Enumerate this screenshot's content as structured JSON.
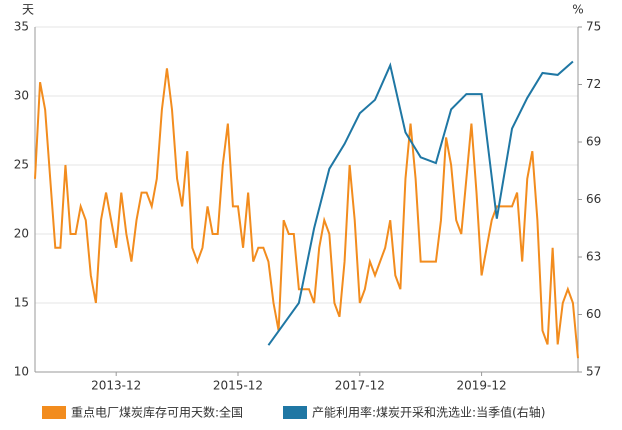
{
  "chart_data": {
    "type": "line",
    "y_label": "天",
    "y2_label": "%",
    "xlim": [
      "2012-08",
      "2021-07"
    ],
    "xticks": [
      "2013-12",
      "2015-12",
      "2017-12",
      "2019-12"
    ],
    "ylim": [
      10,
      35
    ],
    "yticks": [
      10,
      15,
      20,
      25,
      30,
      35
    ],
    "y2lim": [
      57,
      75
    ],
    "y2ticks": [
      57,
      60,
      63,
      66,
      69,
      72,
      75
    ],
    "grid": true,
    "legend": "bottom",
    "series": [
      {
        "name": "重点电厂煤炭库存可用天数:全国",
        "color": "#f28c1e",
        "x": [
          "2012-08",
          "2012-09",
          "2012-10",
          "2012-11",
          "2012-12",
          "2013-01",
          "2013-02",
          "2013-03",
          "2013-04",
          "2013-05",
          "2013-06",
          "2013-07",
          "2013-08",
          "2013-09",
          "2013-10",
          "2013-11",
          "2013-12",
          "2014-01",
          "2014-02",
          "2014-03",
          "2014-04",
          "2014-05",
          "2014-06",
          "2014-07",
          "2014-08",
          "2014-09",
          "2014-10",
          "2014-11",
          "2014-12",
          "2015-01",
          "2015-02",
          "2015-03",
          "2015-04",
          "2015-05",
          "2015-06",
          "2015-07",
          "2015-08",
          "2015-09",
          "2015-10",
          "2015-11",
          "2015-12",
          "2016-01",
          "2016-02",
          "2016-03",
          "2016-04",
          "2016-05",
          "2016-06",
          "2016-07",
          "2016-08",
          "2016-09",
          "2016-10",
          "2016-11",
          "2016-12",
          "2017-01",
          "2017-02",
          "2017-03",
          "2017-04",
          "2017-05",
          "2017-06",
          "2017-07",
          "2017-08",
          "2017-09",
          "2017-10",
          "2017-11",
          "2017-12",
          "2018-01",
          "2018-02",
          "2018-03",
          "2018-04",
          "2018-05",
          "2018-06",
          "2018-07",
          "2018-08",
          "2018-09",
          "2018-10",
          "2018-11",
          "2018-12",
          "2019-01",
          "2019-02",
          "2019-03",
          "2019-04",
          "2019-05",
          "2019-06",
          "2019-07",
          "2019-08",
          "2019-09",
          "2019-10",
          "2019-11",
          "2019-12",
          "2020-01",
          "2020-02",
          "2020-03",
          "2020-04",
          "2020-05",
          "2020-06",
          "2020-07",
          "2020-08",
          "2020-09",
          "2020-10",
          "2020-11",
          "2020-12",
          "2021-01",
          "2021-02",
          "2021-03",
          "2021-04",
          "2021-05",
          "2021-06",
          "2021-07"
        ],
        "values": [
          24,
          31,
          29,
          24,
          19,
          19,
          25,
          20,
          20,
          22,
          21,
          17,
          15,
          21,
          23,
          21,
          19,
          23,
          20,
          18,
          21,
          23,
          23,
          22,
          24,
          29,
          32,
          29,
          24,
          22,
          26,
          19,
          18,
          19,
          22,
          20,
          20,
          25,
          28,
          22,
          22,
          19,
          23,
          18,
          19,
          19,
          18,
          15,
          13,
          21,
          20,
          20,
          16,
          16,
          16,
          15,
          19,
          21,
          20,
          15,
          14,
          18,
          25,
          21,
          15,
          16,
          18,
          17,
          18,
          19,
          21,
          17,
          16,
          24,
          28,
          24,
          18,
          18,
          18,
          18,
          21,
          27,
          25,
          21,
          20,
          24,
          28,
          23,
          17,
          19,
          21,
          22,
          22,
          22,
          22,
          23,
          18,
          24,
          26,
          21,
          13,
          12,
          19,
          12,
          15,
          16,
          15,
          11
        ]
      },
      {
        "name": "产能利用率:煤炭开采和洗选业:当季值(右轴)",
        "color": "#1f77a4",
        "axis": "y2",
        "x": [
          "2016-06",
          "2016-12",
          "2017-03",
          "2017-06",
          "2017-09",
          "2017-12",
          "2018-03",
          "2018-06",
          "2018-09",
          "2018-12",
          "2019-03",
          "2019-06",
          "2019-09",
          "2019-12",
          "2020-03",
          "2020-06",
          "2020-09",
          "2020-12",
          "2021-03",
          "2021-06"
        ],
        "values": [
          58.4,
          60.6,
          64.5,
          67.6,
          68.9,
          70.5,
          71.2,
          73,
          69.5,
          68.2,
          67.9,
          70.7,
          71.5,
          71.5,
          65,
          69.7,
          71.3,
          72.6,
          72.5,
          73.2
        ]
      }
    ]
  }
}
